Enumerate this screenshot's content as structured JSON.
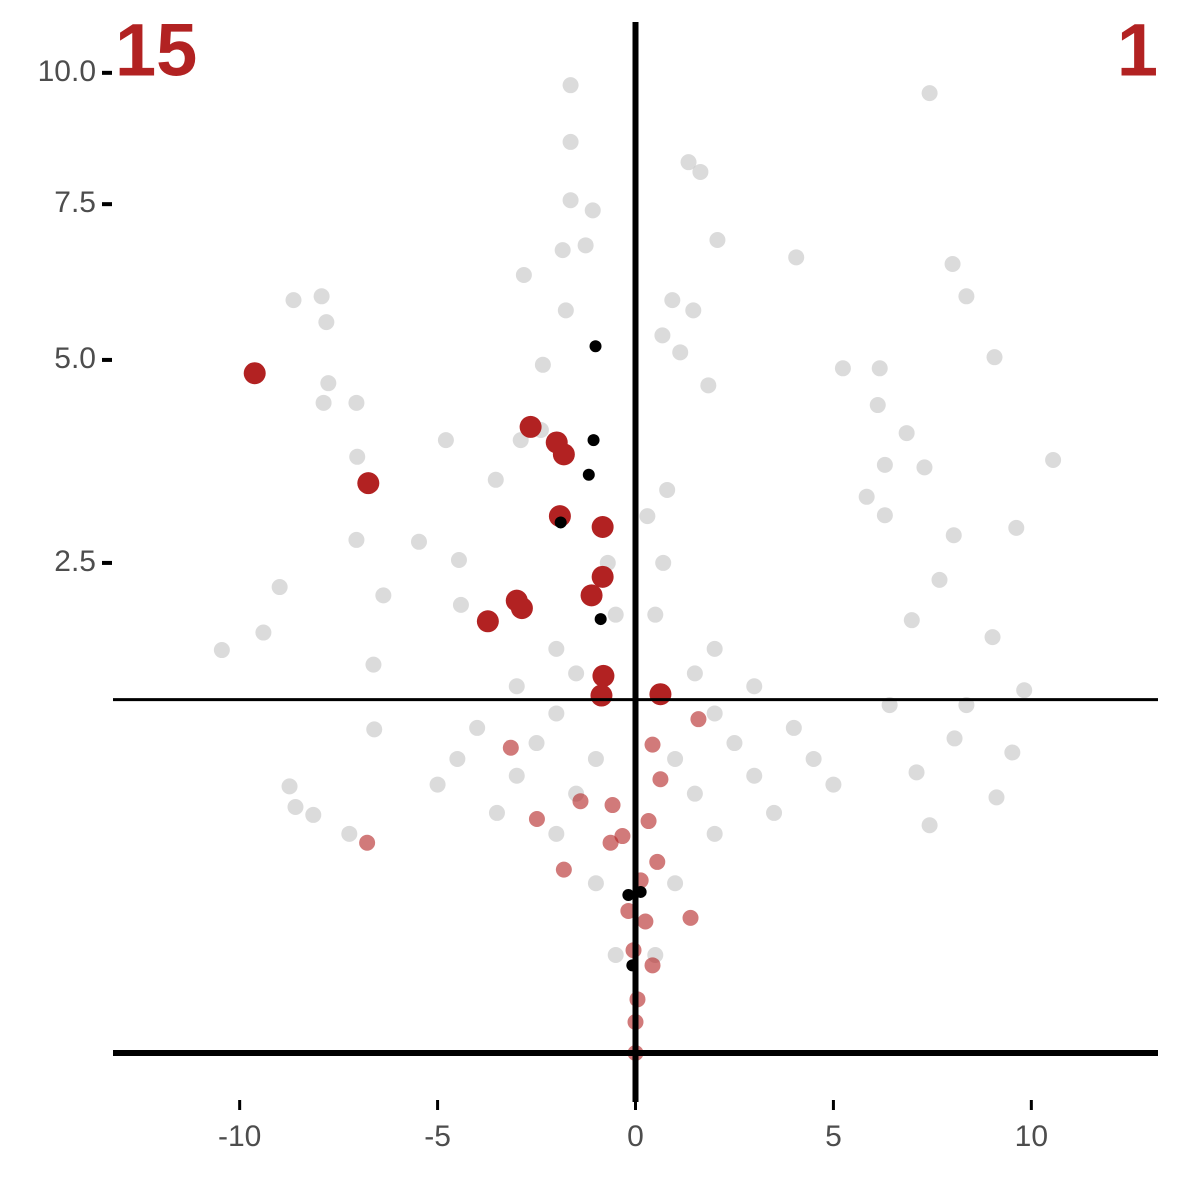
{
  "chart_data": {
    "type": "scatter",
    "y_scale": "sqrt",
    "xlim": [
      -13.2,
      13.2
    ],
    "ylim": [
      0,
      11
    ],
    "xticks": [
      -10,
      -5,
      0,
      5,
      10
    ],
    "yticks": [
      2.5,
      {
        "value": 5,
        "label": "5.0"
      },
      7.5,
      {
        "value": 10,
        "label": "10.0"
      }
    ],
    "hlines": [
      0,
      1.3
    ],
    "vlines": [
      0
    ],
    "annotations": [
      {
        "text": "15",
        "corner": "top-left",
        "color": "#b22222"
      },
      {
        "text": "1",
        "corner": "top-right",
        "color": "#b22222"
      }
    ],
    "series": [
      {
        "color": "#bebebe",
        "x": [
          -1.64,
          -1.64,
          1.34,
          1.64,
          7.43,
          -1.64,
          -1.08,
          2.07,
          4.06,
          8.01,
          8.36,
          -8.64,
          -7.93,
          -7.81,
          -1.84,
          -1.26,
          -2.82,
          9.07,
          -7.76,
          -7.88,
          -7.05,
          10.55,
          7.3,
          6.85,
          9.62,
          -8.99,
          -9.4,
          -10.45,
          9.02,
          9.82,
          9.52,
          7.1,
          9.12,
          -8.74,
          -8.59,
          -8.14,
          -7.23,
          7.43,
          -7.05,
          -7.03,
          -4.79,
          5.24,
          6.17,
          6.12,
          0.93,
          1.46,
          0.68,
          1.13,
          1.84,
          6.3,
          5.84,
          6.3,
          8.04,
          7.68,
          6.98,
          6.42,
          8.36,
          8.06,
          -4.46,
          -4.41,
          -5.47,
          -6.37,
          -6.62,
          -6.6,
          -2.39,
          -2.34,
          -1.76,
          -2.9,
          -3.53,
          -1,
          1,
          -2,
          2,
          -3,
          3,
          -2.5,
          2.5,
          -4,
          4,
          -1.5,
          1.5,
          -3.5,
          3.5,
          -0.5,
          0.5,
          -1,
          1,
          -2,
          2,
          -4.5,
          4.5,
          -3,
          3,
          -2,
          2,
          -0.5,
          0.5,
          -0.7,
          0.7,
          -1.5,
          1.5,
          -5,
          5,
          0.3,
          0.8
        ],
        "values": [
          9.75,
          8.64,
          8.26,
          8.08,
          9.59,
          7.57,
          7.39,
          6.88,
          6.59,
          6.48,
          5.96,
          5.9,
          5.96,
          5.56,
          6.71,
          6.79,
          6.3,
          5.04,
          4.67,
          4.4,
          4.4,
          3.66,
          3.57,
          4,
          2.87,
          2.26,
          1.84,
          1.69,
          1.8,
          1.37,
          0.94,
          0.82,
          0.68,
          0.74,
          0.63,
          0.59,
          0.5,
          0.54,
          2.74,
          3.7,
          3.91,
          4.88,
          4.88,
          4.37,
          5.9,
          5.74,
          5.36,
          5.11,
          4.64,
          3.6,
          3.22,
          3.01,
          2.79,
          2.33,
          1.95,
          1.26,
          1.26,
          1.03,
          2.53,
          2.09,
          2.72,
          2.18,
          1.57,
          1.09,
          4.04,
          4.93,
          5.74,
          3.91,
          3.42,
          0.3,
          0.3,
          0.5,
          0.5,
          0.8,
          0.8,
          1,
          1,
          1.1,
          1.1,
          0.7,
          0.7,
          0.6,
          0.6,
          0.1,
          0.1,
          0.9,
          0.9,
          1.2,
          1.2,
          0.9,
          0.9,
          1.4,
          1.4,
          1.7,
          1.7,
          2,
          2,
          2.5,
          2.5,
          1.5,
          1.5,
          0.75,
          0.75,
          3,
          3.3
        ]
      },
      {
        "color": "#b22222",
        "x": [
          -3.15,
          1.59,
          0.43,
          -1.39,
          -2.49,
          -6.78,
          -1.81,
          1.39,
          -0.63,
          0.33,
          -0.33,
          0.55,
          0.13,
          -0.18,
          0.25,
          -0.05,
          0.43,
          0.05,
          0,
          0,
          -0.58,
          0.63
        ],
        "values": [
          0.97,
          1.16,
          0.99,
          0.66,
          0.57,
          0.46,
          0.35,
          0.19,
          0.46,
          0.56,
          0.49,
          0.38,
          0.31,
          0.21,
          0.18,
          0.11,
          0.08,
          0.03,
          0.01,
          0,
          0.64,
          0.78
        ]
      },
      {
        "color": "#b22222",
        "x": [
          -9.62,
          -6.75,
          -2.65,
          -1.99,
          -1.81,
          -1.91,
          -0.83,
          -0.83,
          -3,
          -2.87,
          -3.73,
          -1.11,
          -0.81,
          -0.86,
          0.63
        ],
        "values": [
          4.81,
          3.38,
          4.08,
          3.88,
          3.73,
          3,
          2.88,
          2.36,
          2.13,
          2.06,
          1.94,
          2.18,
          1.48,
          1.33,
          1.34
        ]
      },
      {
        "color": "#000000",
        "x": [
          -1.01,
          -1.06,
          -1.18,
          -1.89,
          -0.88,
          -0.18,
          0.13,
          -0.08
        ],
        "values": [
          5.2,
          3.91,
          3.48,
          2.93,
          1.96,
          0.26,
          0.27,
          0.08
        ]
      }
    ]
  }
}
